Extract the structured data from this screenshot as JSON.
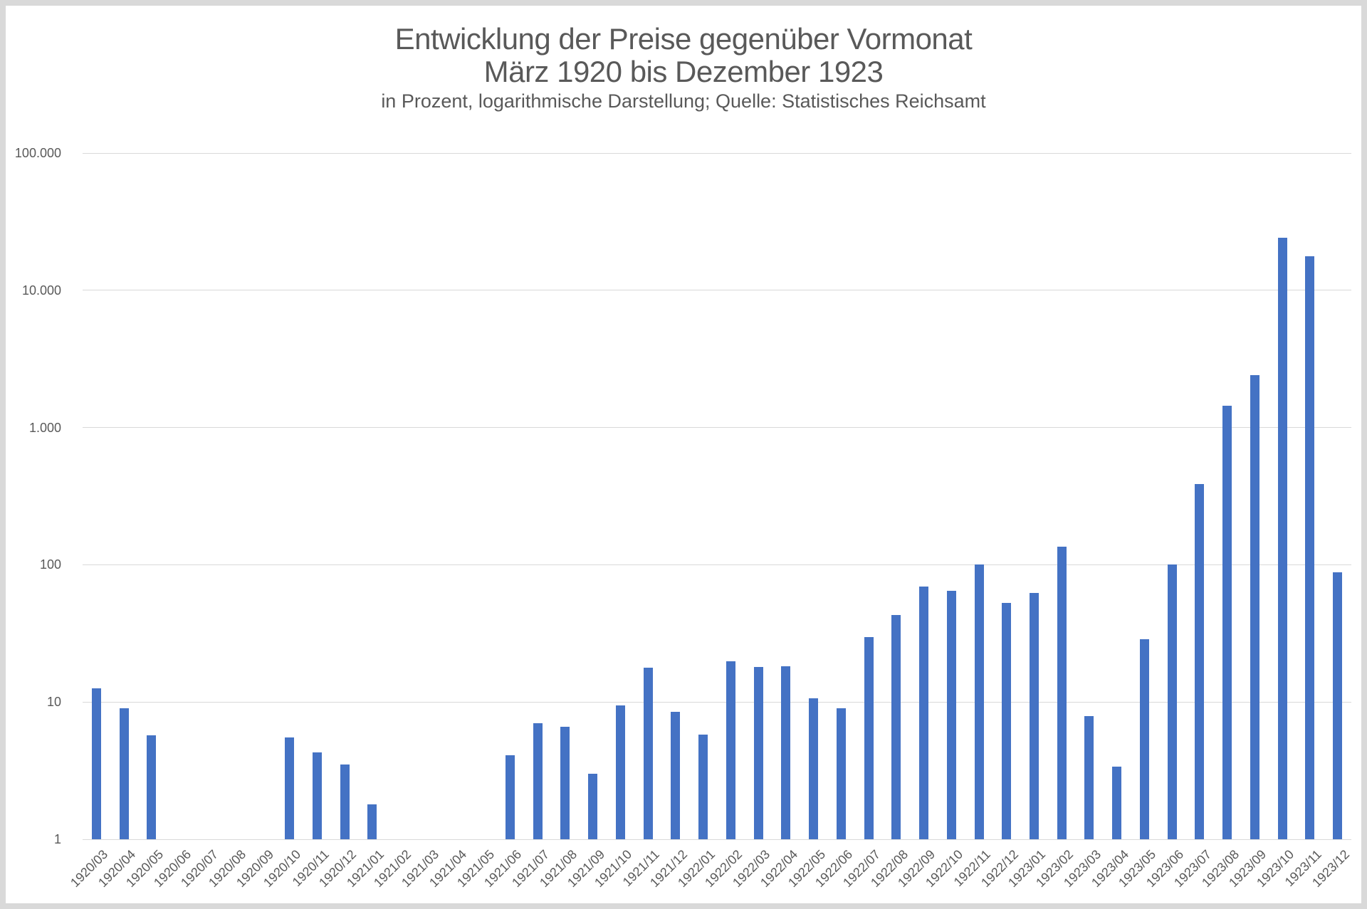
{
  "page": {
    "background_color": "#FFFFFF",
    "frame_color": "#D9D9D9"
  },
  "chart_data": {
    "type": "bar",
    "title_line1": "Entwicklung der Preise gegenüber Vormonat",
    "title_line2": "März 1920 bis Dezember 1923",
    "subtitle": "in Prozent, logarithmische Darstellung; Quelle: Statistisches Reichsamt",
    "yscale": "log",
    "ylim": [
      1,
      100000
    ],
    "grid": true,
    "legend": false,
    "bar_color": "#4472C4",
    "gridline_color": "#D9D9D9",
    "text_color": "#595959",
    "ytick_labels": [
      "100.000",
      "10.000",
      "1.000",
      "100",
      "10",
      "1"
    ],
    "categories": [
      "1920/03",
      "1920/04",
      "1920/05",
      "1920/06",
      "1920/07",
      "1920/08",
      "1920/09",
      "1920/10",
      "1920/11",
      "1920/12",
      "1921/01",
      "1921/02",
      "1921/03",
      "1921/04",
      "1921/05",
      "1921/06",
      "1921/07",
      "1921/08",
      "1921/09",
      "1921/10",
      "1921/11",
      "1921/12",
      "1922/01",
      "1922/02",
      "1922/03",
      "1922/04",
      "1922/05",
      "1922/06",
      "1922/07",
      "1922/08",
      "1922/09",
      "1922/10",
      "1922/11",
      "1922/12",
      "1923/01",
      "1923/02",
      "1923/03",
      "1923/04",
      "1923/05",
      "1923/06",
      "1923/07",
      "1923/08",
      "1923/09",
      "1923/10",
      "1923/11",
      "1923/12"
    ],
    "values": [
      12.6,
      9.0,
      5.7,
      null,
      null,
      null,
      null,
      5.5,
      4.3,
      3.5,
      1.8,
      null,
      null,
      null,
      null,
      4.1,
      7.0,
      6.6,
      3.0,
      9.4,
      17.7,
      8.5,
      5.8,
      19.7,
      18.0,
      18.2,
      10.6,
      9.0,
      29.6,
      43.2,
      69.7,
      64.3,
      101,
      52.7,
      62.5,
      135,
      7.9,
      3.4,
      28.8,
      100,
      386,
      1440,
      2417,
      24200,
      17800,
      88.5
    ]
  }
}
